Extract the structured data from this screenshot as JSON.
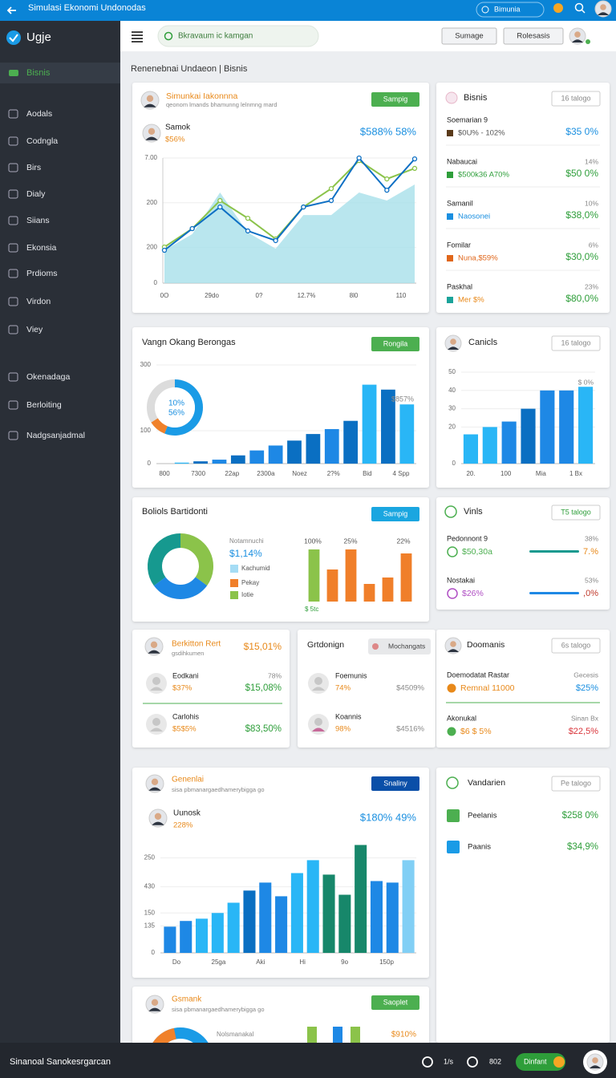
{
  "top_bar": {
    "title": "Simulasi Ekonomi Undonodas",
    "button": "Bimunia"
  },
  "sidebar": {
    "logo": "Ugje",
    "active": "Bisnis",
    "items": [
      "Aodals",
      "Codngla",
      "Birs",
      "Dialy",
      "Siians",
      "Ekonsia",
      "Prdioms",
      "Virdon",
      "Viey",
      "Okenadaga",
      "Berloiting",
      "Nadgsanjadmal"
    ]
  },
  "header": {
    "search": "Bkravaum ic kamgan",
    "buttons": [
      "Sumage",
      "Rolesasis"
    ]
  },
  "section_title": "Renenebnai Undaeon | Bisnis",
  "cards": [
    {
      "title": "Simunkai Iakonnna",
      "subtitle": "qeonom lmands bhamunng lelnmng mard",
      "badge": "Sampig",
      "person": {
        "name": "Samok",
        "value": "$56%"
      },
      "headline": "$588% 58%",
      "chart": {
        "type": "line",
        "ylim": [
          0,
          700
        ],
        "yticks": [
          0,
          200,
          {
            "value": 450,
            "label": "200"
          },
          {
            "value": 700,
            "label": "7.00"
          }
        ],
        "x_labels": [
          "0O",
          "29do",
          "0?",
          "12.7%",
          "8l0",
          "110"
        ],
        "series": [
          {
            "area": true,
            "color": "#a8e0ea",
            "values": [
              184,
              274,
              507,
              283,
              193,
              381,
              381,
              507,
              462,
              552
            ]
          },
          {
            "color": "#8bc34a",
            "values": [
              202,
              305,
              462,
              363,
              247,
              426,
              529,
              686,
              583,
              642
            ]
          },
          {
            "color": "#0d6fc4",
            "values": [
              184,
              305,
              426,
              292,
              238,
              426,
              462,
              700,
              520,
              695
            ]
          }
        ]
      }
    },
    {
      "title": "Bisnis",
      "badge": "16 talogo",
      "rows": [
        {
          "name": "Soemarian 9",
          "sub": "$0U% - 102%",
          "value": "$35 0%"
        },
        {
          "name": "Nabaucai",
          "sub": "$500k36 A70%",
          "note": "14%",
          "value": "$50 0%"
        },
        {
          "name": "Samanil",
          "sub": "Naosonei",
          "note": "10%",
          "value": "$38,0%"
        },
        {
          "name": "Fomilar",
          "sub": "Nuna,$59%",
          "note": "6%",
          "value": "$30,0%"
        },
        {
          "name": "Paskhal",
          "sub": "Mer $%",
          "note": "23%",
          "value": "$80,0%"
        }
      ]
    },
    {
      "title": "Vangn Okang Berongas",
      "badge": "Rongila",
      "donut": {
        "values": [
          56,
          10
        ],
        "colors": [
          "#1a9be6",
          "#f0812a"
        ],
        "labels": [
          "10%",
          "56%"
        ]
      },
      "chart": {
        "type": "bar",
        "ylim": [
          0,
          300
        ],
        "yticks": [
          0,
          100,
          300
        ],
        "x_labels": [
          "800",
          "7300",
          "22ap",
          "2300a",
          "Noez",
          "2?%",
          "Bid",
          "4 Spp"
        ],
        "value_label": "$857%",
        "values": [
          3,
          7,
          12,
          25,
          40,
          55,
          70,
          90,
          105,
          130,
          240,
          225,
          180
        ],
        "colors": [
          "#29b6f6",
          "#0a6fc2",
          "#1e88e5",
          "#0a6fc2",
          "#1e88e5",
          "#1e88e5",
          "#0a6fc2",
          "#0a6fc2",
          "#1e88e5",
          "#0a6fc2",
          "#29b6f6",
          "#0a6fc2",
          "#29b6f6"
        ]
      }
    },
    {
      "title": "Canicls",
      "badge": "16 talogo",
      "chart": {
        "type": "bar",
        "ylim": [
          0,
          50
        ],
        "yticks": [
          0,
          20,
          30,
          40,
          50
        ],
        "x_labels": [
          "20.",
          "100",
          "Mia",
          "1 Bx"
        ],
        "value_label": "$ 0%",
        "values": [
          16,
          20,
          23,
          30,
          40,
          40,
          42
        ],
        "colors": [
          "#29b6f6",
          "#29b6f6",
          "#1e88e5",
          "#0a6fc2",
          "#1e88e5",
          "#1e88e5",
          "#29b6f6"
        ]
      }
    },
    {
      "title": "Boliols Bartidonti",
      "badge": "Sampig",
      "donut": {
        "values": [
          35,
          30,
          35
        ],
        "colors": [
          "#8bc34a",
          "#1e88e5",
          "#16998f"
        ]
      },
      "label": "Notamnuchi",
      "value": "$1,14%",
      "legend": [
        {
          "name": "Kachumid",
          "color": "#a5dcf5"
        },
        {
          "name": "Pekay",
          "color": "#f07f2a"
        },
        {
          "name": "Iotie",
          "color": "#8bc34a"
        }
      ],
      "chart": {
        "type": "bar",
        "column_labels": [
          "100%",
          "25%",
          "22%"
        ],
        "footnote": "$ 5tc",
        "values": [
          65,
          40,
          65,
          22,
          30,
          60
        ],
        "colors": [
          "#8bc34a",
          "#f07f2a",
          "#f07f2a",
          "#f07f2a",
          "#f07f2a",
          "#f07f2a"
        ]
      }
    },
    {
      "title": "Vinls",
      "badge": "T5 talogo",
      "rows": [
        {
          "name": "Pedonnont 9",
          "sub": "$50,30a",
          "note": "38%",
          "value": "7.%"
        },
        {
          "name": "Nostakai",
          "sub": "$26%",
          "note": "53%",
          "value": ",0%"
        }
      ]
    },
    {
      "person": {
        "name": "Berkitton Rert",
        "sub": "gsdihkumen",
        "value": "$15,01%"
      },
      "rows": [
        {
          "name": "Eodkani",
          "sub": "$37%",
          "note": "78%",
          "value": "$15,08%"
        },
        {
          "name": "Carlohis",
          "sub": "$5$5%",
          "value": "$83,50%"
        }
      ]
    },
    {
      "title": "Grtdonign",
      "button": "Mochangats",
      "rows": [
        {
          "name": "Foemunis",
          "sub": "74%",
          "value": "$4509%"
        },
        {
          "name": "Koannis",
          "sub": "98%",
          "value": "$4516%"
        }
      ]
    },
    {
      "title": "Doomanis",
      "badge": "6s talogo",
      "rows": [
        {
          "name": "Doemodatat Rastar",
          "sub": "Remnal 11000",
          "note": "Gecesis",
          "value": "$25%"
        },
        {
          "name": "Akonukal",
          "sub": "$6 $ 5%",
          "note": "Sinan Bx",
          "value": "$22,5%"
        }
      ]
    },
    {
      "title": "Genenlai",
      "subtitle": "sisa pbmanargaedhamerybigga go",
      "badge": "Snaliny",
      "person": {
        "name": "Uunosk",
        "value": "228%"
      },
      "headline": "$180% 49%",
      "chart": {
        "type": "bar",
        "ylim": [
          0,
          285
        ],
        "yticks": [
          0,
          {
            "value": 71,
            "label": "135"
          },
          {
            "value": 105,
            "label": "150"
          },
          {
            "value": 174,
            "label": "430"
          },
          250
        ],
        "x_labels": [
          "Do",
          "25ga",
          "Aki",
          "Hi",
          "9o",
          "150p"
        ],
        "values": [
          69,
          84,
          90,
          105,
          132,
          164,
          185,
          149,
          210,
          244,
          206,
          153,
          284,
          189,
          185,
          244
        ],
        "colors": [
          "#1e88e5",
          "#1e88e5",
          "#29b6f6",
          "#29b6f6",
          "#29b6f6",
          "#0a6fc2",
          "#1e88e5",
          "#1e88e5",
          "#29b6f6",
          "#29b6f6",
          "#17876a",
          "#17876a",
          "#17876a",
          "#1e88e5",
          "#1e88e5",
          "#81cff5"
        ]
      }
    },
    {
      "title": "Vandarien",
      "badge": "Pe talogo",
      "rows": [
        {
          "name": "Peelanis",
          "value": "$258 0%"
        },
        {
          "name": "Paanis",
          "value": "$34,9%"
        }
      ]
    },
    {
      "title": "Gsmank",
      "subtitle": "sisa pbmanargaedhamerybigga go",
      "badge": "Saoplet",
      "label": "Nolsmanakal",
      "value": "$910%"
    }
  ],
  "bottom_bar": {
    "title": "Sinanoal Sanokesrgarcan",
    "items": [
      "1/s",
      "802"
    ],
    "button": "Dinfant"
  }
}
